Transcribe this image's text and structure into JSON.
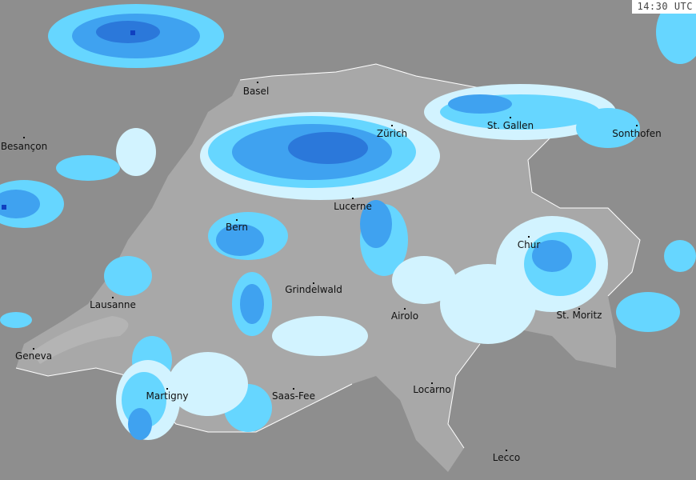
{
  "timestamp": "14:30 UTC",
  "colors": {
    "outside_land": "#8e8e8e",
    "country_land": "#a8a8a8",
    "lake": "#b4b4b4",
    "precip_light": "#d2f3ff",
    "precip_cyan": "#66d6ff",
    "precip_medium": "#3fa2f0",
    "precip_heavy": "#2b78da",
    "precip_extreme": "#1040c0"
  },
  "cities": [
    {
      "name": "Basel"
    },
    {
      "name": "Besançon"
    },
    {
      "name": "Zürich"
    },
    {
      "name": "St. Gallen"
    },
    {
      "name": "Sonthofen"
    },
    {
      "name": "Lucerne"
    },
    {
      "name": "Bern"
    },
    {
      "name": "Chur"
    },
    {
      "name": "Grindelwald"
    },
    {
      "name": "Lausanne"
    },
    {
      "name": "Airolo"
    },
    {
      "name": "St. Moritz"
    },
    {
      "name": "Geneva"
    },
    {
      "name": "Martigny"
    },
    {
      "name": "Saas-Fee"
    },
    {
      "name": "Locarno"
    },
    {
      "name": "Lecco"
    }
  ]
}
